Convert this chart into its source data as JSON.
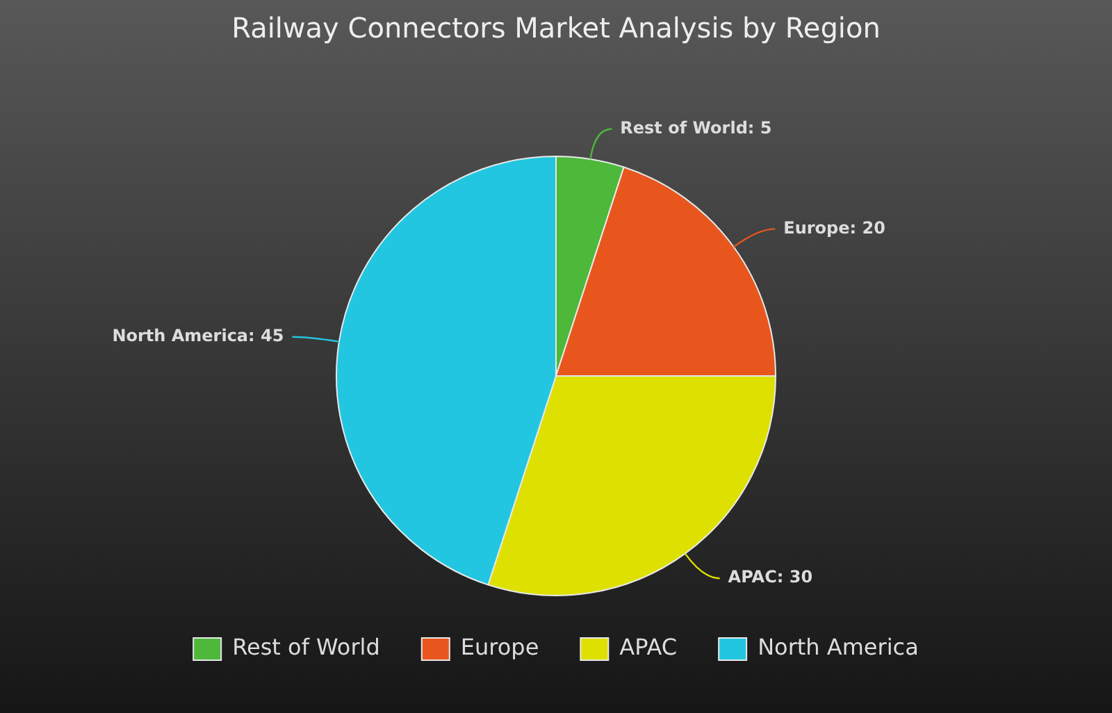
{
  "chart_data": {
    "type": "pie",
    "title": "Railway Connectors Market Analysis by Region",
    "categories": [
      "Rest of World",
      "Europe",
      "APAC",
      "North America"
    ],
    "values": [
      5,
      20,
      30,
      45
    ],
    "colors": [
      "#4db83a",
      "#e8561e",
      "#dde000",
      "#22c6e0"
    ],
    "value_labels": [
      "Rest of World: 5",
      "Europe: 20",
      "APAC: 30",
      "North America: 45"
    ],
    "legend": "bottom"
  }
}
